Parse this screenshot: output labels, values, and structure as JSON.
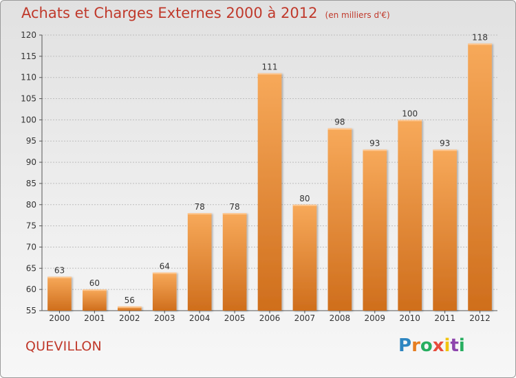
{
  "title": "Achats et Charges Externes 2000 à 2012",
  "subtitle": "(en milliers d'€)",
  "commune": "QUEVILLON",
  "logo": {
    "letters": [
      "P",
      "r",
      "o",
      "x",
      "i",
      "t",
      "i"
    ],
    "colors": [
      "#2e86c1",
      "#e67e22",
      "#27ae60",
      "#e74c3c",
      "#f1c40f",
      "#8e44ad",
      "#27ae60"
    ]
  },
  "colors": {
    "bar_light": "#f7a95a",
    "bar_dark": "#cf6e1c",
    "text": "#c0392b",
    "grid": "#bdbdbd"
  },
  "chart_data": {
    "type": "bar",
    "title": "Achats et Charges Externes 2000 à 2012",
    "categories": [
      "2000",
      "2001",
      "2002",
      "2003",
      "2004",
      "2005",
      "2006",
      "2007",
      "2008",
      "2009",
      "2010",
      "2011",
      "2012"
    ],
    "values": [
      63,
      60,
      56,
      64,
      78,
      78,
      111,
      80,
      98,
      93,
      100,
      93,
      118
    ],
    "ylim": [
      55,
      120
    ],
    "yticks": [
      55,
      60,
      65,
      70,
      75,
      80,
      85,
      90,
      95,
      100,
      105,
      110,
      115,
      120
    ],
    "grid": true,
    "data_labels": true
  }
}
